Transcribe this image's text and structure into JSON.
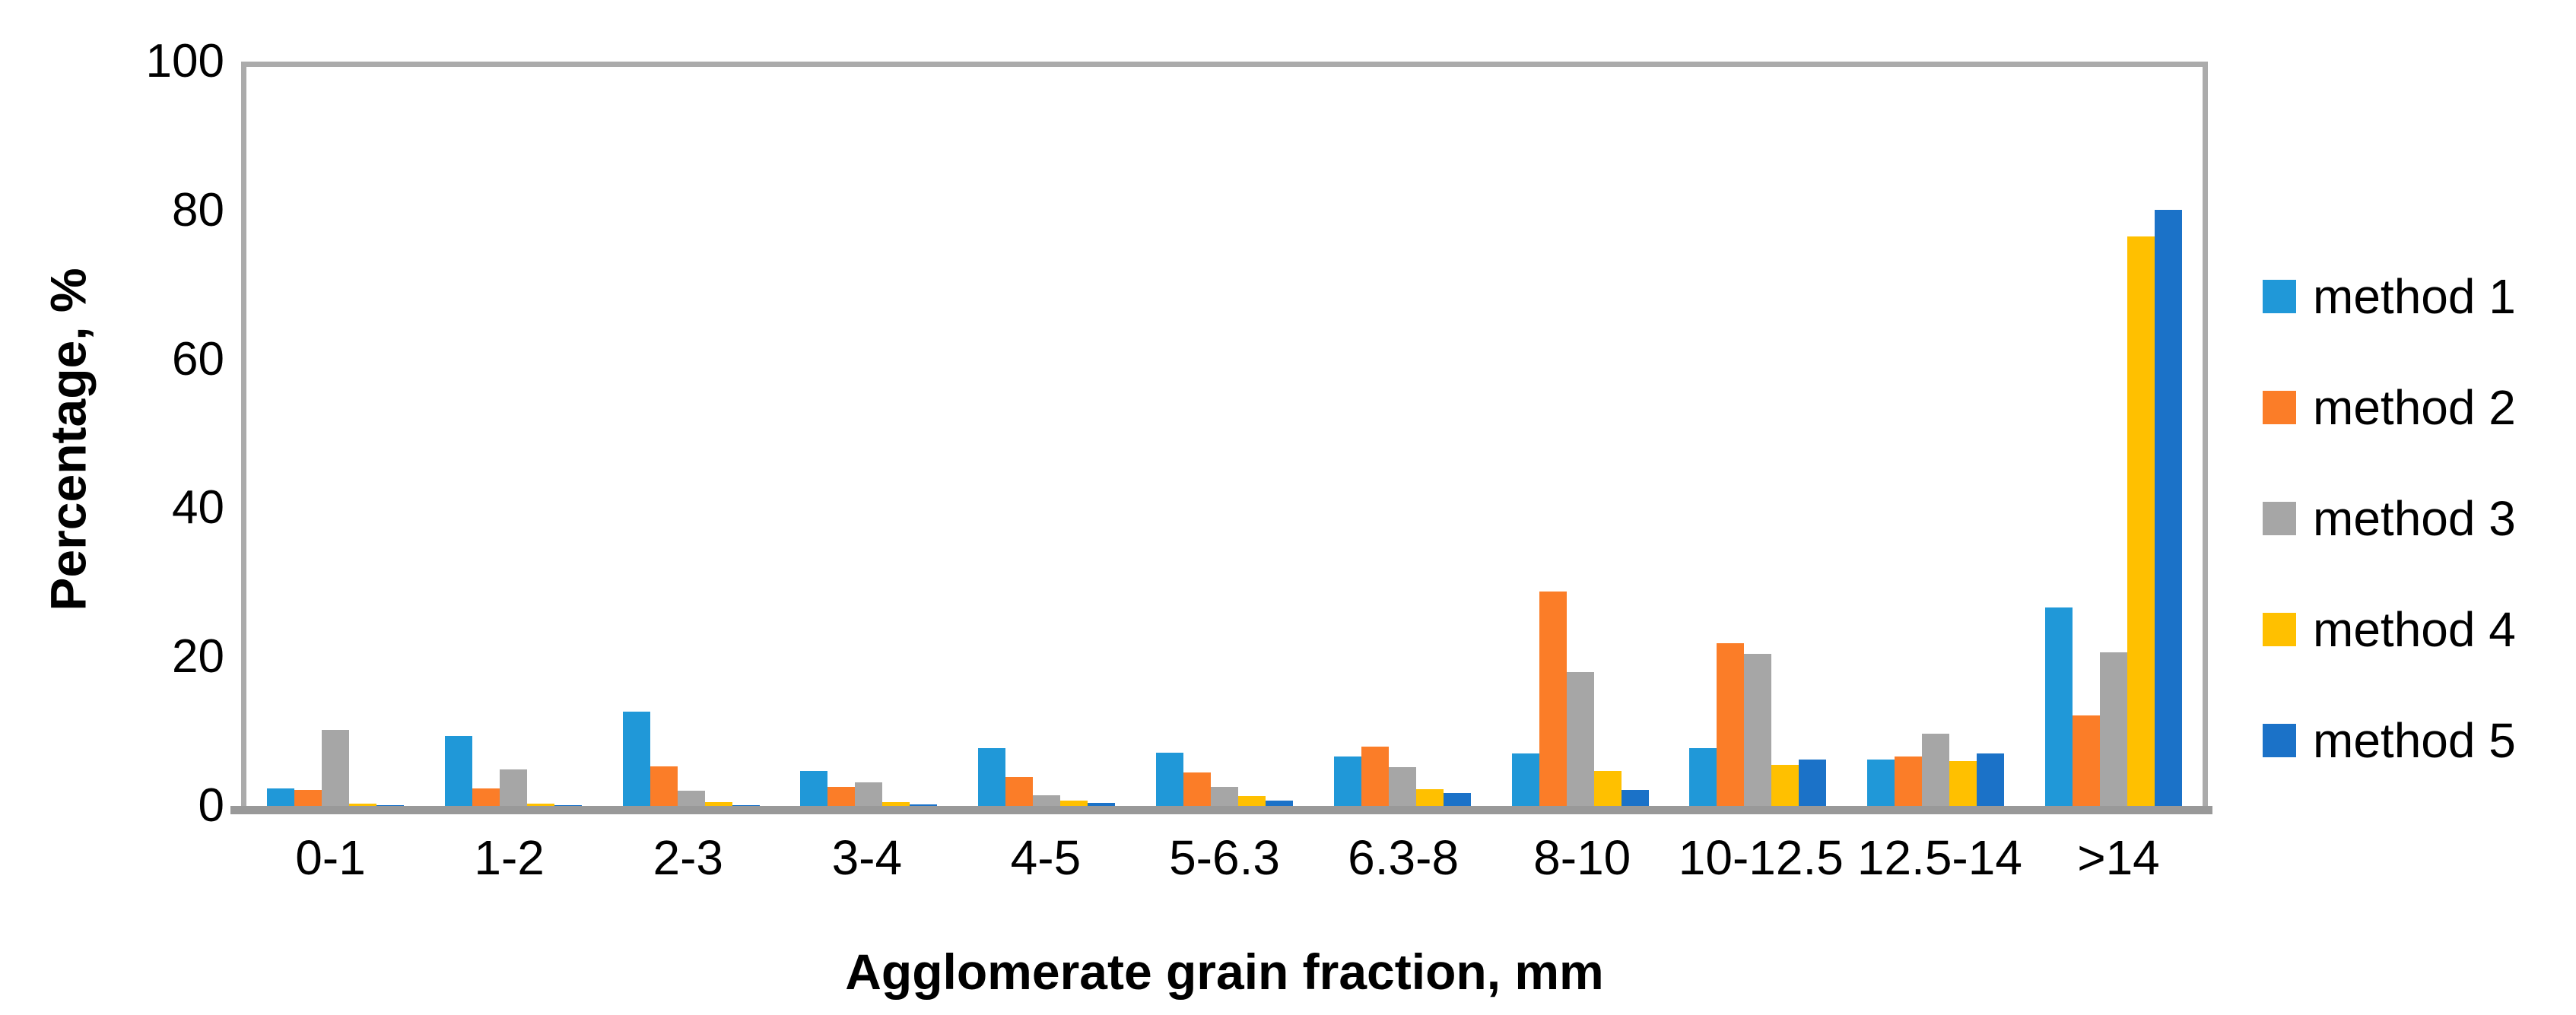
{
  "chart_data": {
    "type": "bar",
    "title": "",
    "xlabel": "Agglomerate grain fraction, mm",
    "ylabel": "Percentage, %",
    "ylim": [
      0,
      100
    ],
    "yticks": [
      0,
      20,
      40,
      60,
      80,
      100
    ],
    "grid": false,
    "legend_position": "right-middle",
    "frame_color": "#ababab",
    "axis_line_color": "#999999",
    "categories": [
      "0-1",
      "1-2",
      "2-3",
      "3-4",
      "4-5",
      "5-6.3",
      "6.3-8",
      "8-10",
      "10-12.5",
      "12.5-14",
      ">14"
    ],
    "series": [
      {
        "name": "method 1",
        "color": "#2098D8",
        "values": [
          2.4,
          9.4,
          12.7,
          4.7,
          7.8,
          7.2,
          6.6,
          7.1,
          7.8,
          6.2,
          26.7
        ]
      },
      {
        "name": "method 2",
        "color": "#FB7D28",
        "values": [
          2.1,
          2.3,
          5.3,
          2.6,
          3.9,
          4.5,
          8.0,
          28.8,
          21.9,
          6.6,
          12.2
        ]
      },
      {
        "name": "method 3",
        "color": "#A6A6A6",
        "values": [
          10.2,
          4.9,
          2.0,
          3.2,
          1.4,
          2.6,
          5.2,
          18.0,
          20.4,
          9.7,
          20.6
        ]
      },
      {
        "name": "method 4",
        "color": "#FFC000",
        "values": [
          0.3,
          0.3,
          0.5,
          0.5,
          0.7,
          1.3,
          2.2,
          4.7,
          5.5,
          6.0,
          76.5
        ]
      },
      {
        "name": "method 5",
        "color": "#1B72C8",
        "values": [
          0.1,
          0.1,
          0.1,
          0.2,
          0.4,
          0.7,
          1.7,
          2.1,
          6.2,
          7.0,
          80.1
        ]
      }
    ]
  }
}
